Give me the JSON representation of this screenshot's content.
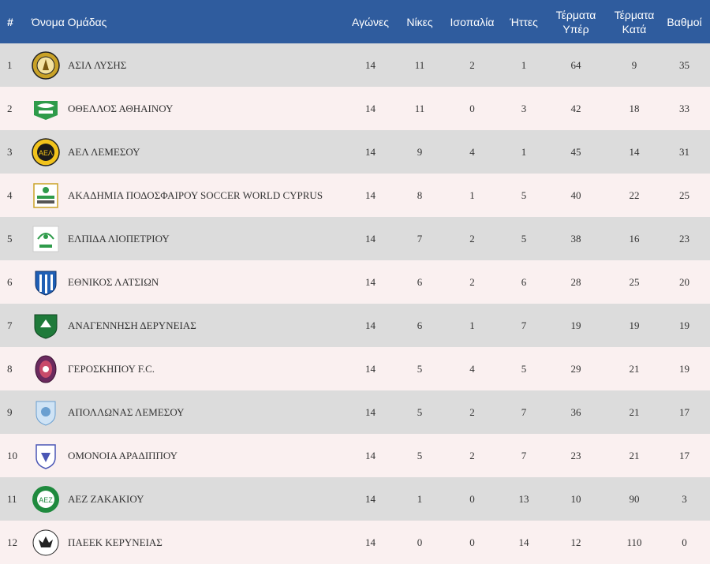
{
  "header": {
    "rank": "#",
    "team": "Όνομα Ομάδας",
    "games": "Αγώνες",
    "wins": "Νίκες",
    "draws": "Ισοπαλία",
    "losses": "Ήττες",
    "gf_line1": "Τέρματα",
    "gf_line2": "Υπέρ",
    "ga_line1": "Τέρματα",
    "ga_line2": "Κατά",
    "points": "Βαθμοί"
  },
  "rows": [
    {
      "rank": "1",
      "team": "ΑΣΙΛ ΛΥΣΗΣ",
      "games": "14",
      "wins": "11",
      "draws": "2",
      "losses": "1",
      "gf": "64",
      "ga": "9",
      "points": "35",
      "logo": "asil-lysis-crest-icon"
    },
    {
      "rank": "2",
      "team": "ΟΘΕΛΛΟΣ ΑΘΗΑΙΝΟΥ",
      "games": "14",
      "wins": "11",
      "draws": "0",
      "losses": "3",
      "gf": "42",
      "ga": "18",
      "points": "33",
      "logo": "othellos-athienou-crest-icon"
    },
    {
      "rank": "3",
      "team": "ΑΕΛ ΛΕΜΕΣΟΥ",
      "games": "14",
      "wins": "9",
      "draws": "4",
      "losses": "1",
      "gf": "45",
      "ga": "14",
      "points": "31",
      "logo": "ael-limassol-crest-icon"
    },
    {
      "rank": "4",
      "team": "ΑΚΑΔΗΜΙΑ ΠΟΔΟΣΦΑΙΡΟΥ SOCCER WORLD CYPRUS",
      "games": "14",
      "wins": "8",
      "draws": "1",
      "losses": "5",
      "gf": "40",
      "ga": "22",
      "points": "25",
      "logo": "soccer-world-crest-icon"
    },
    {
      "rank": "5",
      "team": "ΕΛΠΙΔΑ ΛΙΟΠΕΤΡΙΟΥ",
      "games": "14",
      "wins": "7",
      "draws": "2",
      "losses": "5",
      "gf": "38",
      "ga": "16",
      "points": "23",
      "logo": "elpida-liopetriou-crest-icon"
    },
    {
      "rank": "6",
      "team": "ΕΘΝΙΚΟΣ ΛΑΤΣΙΩΝ",
      "games": "14",
      "wins": "6",
      "draws": "2",
      "losses": "6",
      "gf": "28",
      "ga": "25",
      "points": "20",
      "logo": "ethnikos-latsion-crest-icon"
    },
    {
      "rank": "7",
      "team": "ΑΝΑΓΕΝΝΗΣΗ ΔΕΡΥΝΕΙΑΣ",
      "games": "14",
      "wins": "6",
      "draws": "1",
      "losses": "7",
      "gf": "19",
      "ga": "19",
      "points": "19",
      "logo": "anagennisi-deryneias-crest-icon"
    },
    {
      "rank": "8",
      "team": "ΓΕΡΟΣΚΗΠΟΥ F.C.",
      "games": "14",
      "wins": "5",
      "draws": "4",
      "losses": "5",
      "gf": "29",
      "ga": "21",
      "points": "19",
      "logo": "geroskipou-crest-icon"
    },
    {
      "rank": "9",
      "team": "ΑΠΟΛΛΩΝΑΣ ΛΕΜΕΣΟΥ",
      "games": "14",
      "wins": "5",
      "draws": "2",
      "losses": "7",
      "gf": "36",
      "ga": "21",
      "points": "17",
      "logo": "apollon-limassol-crest-icon"
    },
    {
      "rank": "10",
      "team": "ΟΜΟΝΟΙΑ ΑΡΑΔΙΠΠΟΥ",
      "games": "14",
      "wins": "5",
      "draws": "2",
      "losses": "7",
      "gf": "23",
      "ga": "21",
      "points": "17",
      "logo": "omonia-aradippou-crest-icon"
    },
    {
      "rank": "11",
      "team": "ΑΕΖ ΖΑΚΑΚΙΟΥ",
      "games": "14",
      "wins": "1",
      "draws": "0",
      "losses": "13",
      "gf": "10",
      "ga": "90",
      "points": "3",
      "logo": "aez-zakakiou-crest-icon"
    },
    {
      "rank": "12",
      "team": "ΠΑΕΕΚ ΚΕΡΥΝΕΙΑΣ",
      "games": "14",
      "wins": "0",
      "draws": "0",
      "losses": "14",
      "gf": "12",
      "ga": "110",
      "points": "0",
      "logo": "paeek-kyrenia-crest-icon"
    }
  ],
  "colors": {
    "header_bg": "#2f5c9e",
    "row_odd": "#dcdcdc",
    "row_even": "#faf0f0"
  }
}
